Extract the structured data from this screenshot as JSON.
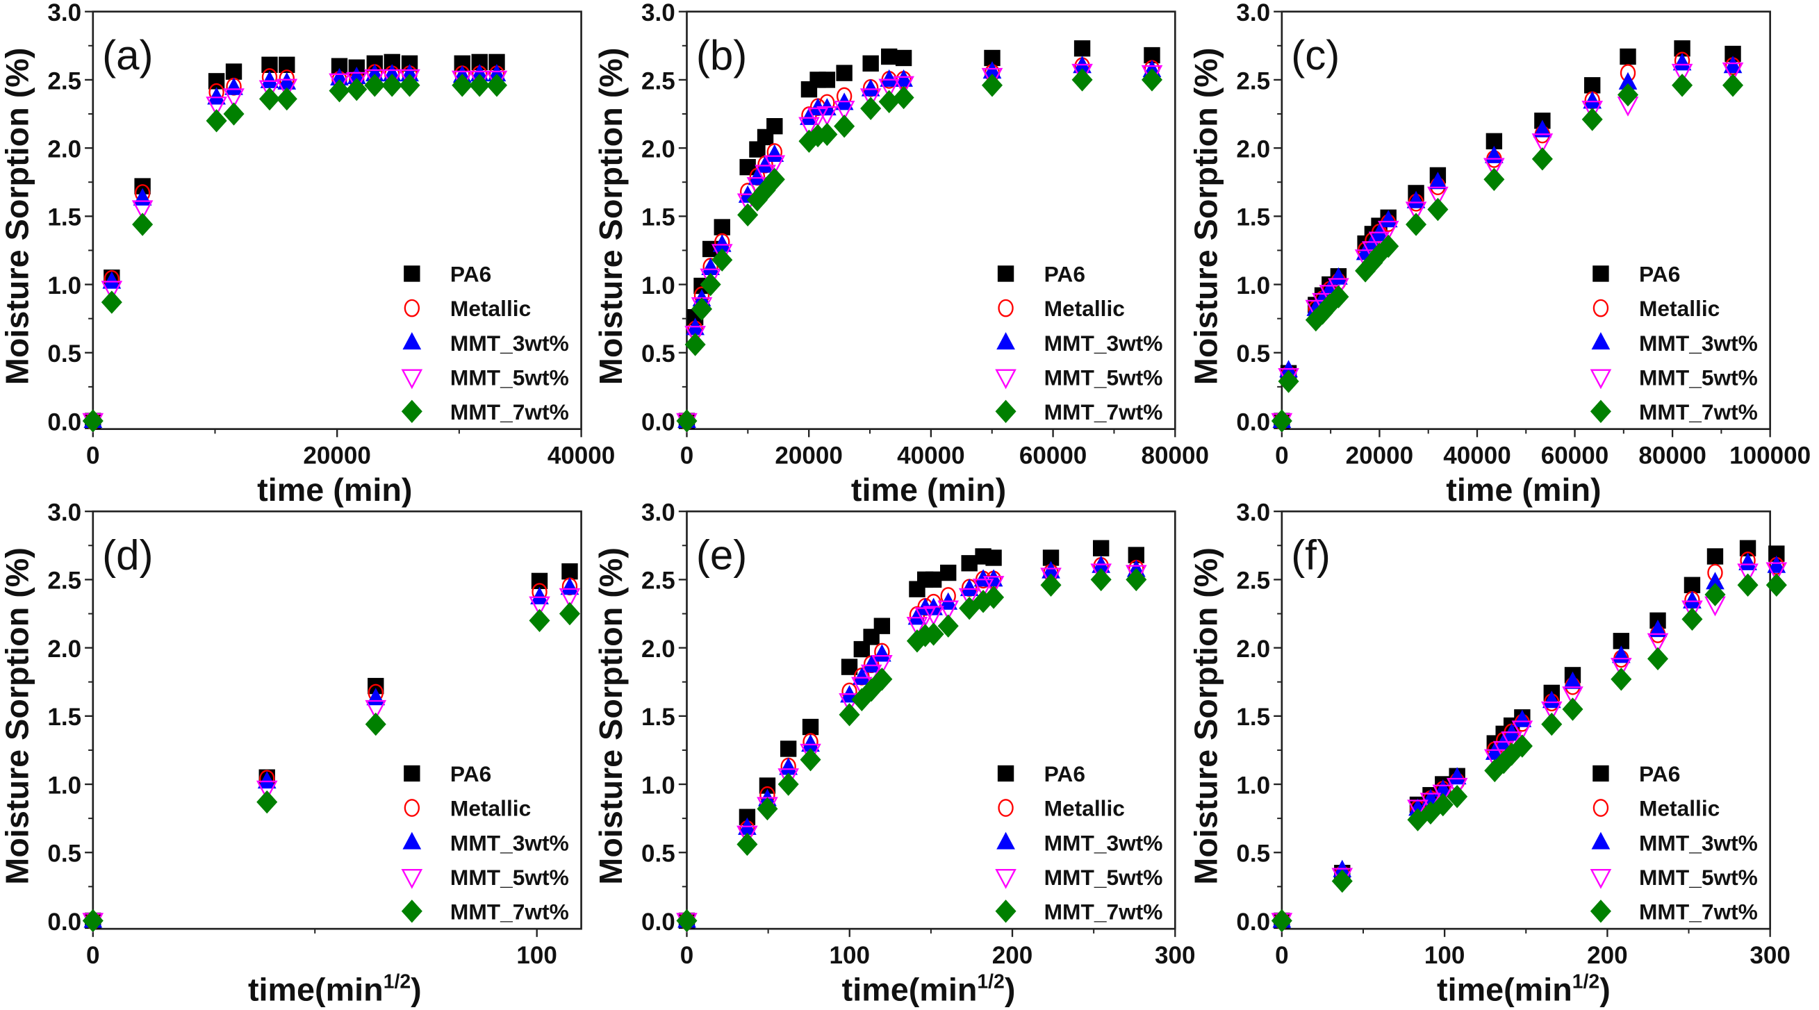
{
  "legend": {
    "position": "bottom-right",
    "entries": [
      {
        "name": "PA6",
        "color": "#000000",
        "marker": "filled-square"
      },
      {
        "name": "Metallic",
        "color": "#ff0000",
        "marker": "open-circle"
      },
      {
        "name": "MMT_3wt%",
        "color": "#0000ff",
        "marker": "filled-triangle-up"
      },
      {
        "name": "MMT_5wt%",
        "color": "#ff00ff",
        "marker": "open-triangle-down"
      },
      {
        "name": "MMT_7wt%",
        "color": "#008000",
        "marker": "filled-diamond"
      }
    ]
  },
  "chart_data": [
    {
      "panel": "(a)",
      "type": "scatter",
      "xlabel": "time (min)",
      "xlabel_sup": "",
      "xlabel_end": "",
      "ylabel": "Moisture Sorption (%)",
      "xlim": [
        0,
        40000
      ],
      "ylim": [
        0,
        3.0
      ],
      "grid": false,
      "xticks": [
        0,
        20000,
        40000
      ],
      "xtick_labels": [
        "0",
        "20000",
        "40000"
      ],
      "xminor": [
        10000,
        30000
      ],
      "yticks": [
        0,
        0.5,
        1.0,
        1.5,
        2.0,
        2.5,
        3.0
      ],
      "ytick_labels": [
        "0.0",
        "0.5",
        "1.0",
        "1.5",
        "2.0",
        "2.5",
        "3.0"
      ],
      "x": [
        0,
        1540,
        4060,
        10120,
        11540,
        14470,
        15880,
        20190,
        21600,
        23080,
        24500,
        25940,
        30250,
        31670,
        33080
      ],
      "series": [
        {
          "name": "PA6",
          "y": [
            0,
            1.05,
            1.72,
            2.49,
            2.56,
            2.61,
            2.61,
            2.6,
            2.59,
            2.62,
            2.63,
            2.62,
            2.62,
            2.63,
            2.63
          ]
        },
        {
          "name": "Metallic",
          "y": [
            0,
            1.04,
            1.67,
            2.41,
            2.45,
            2.52,
            2.51,
            2.5,
            2.5,
            2.55,
            2.54,
            2.54,
            2.54,
            2.54,
            2.54
          ]
        },
        {
          "name": "MMT_3wt%",
          "y": [
            0,
            1.02,
            1.63,
            2.37,
            2.44,
            2.49,
            2.48,
            2.51,
            2.52,
            2.54,
            2.54,
            2.54,
            2.53,
            2.54,
            2.54
          ]
        },
        {
          "name": "MMT_5wt%",
          "y": [
            0,
            0.97,
            1.56,
            2.32,
            2.38,
            2.44,
            2.45,
            2.49,
            2.5,
            2.52,
            2.52,
            2.52,
            2.51,
            2.51,
            2.51
          ]
        },
        {
          "name": "MMT_7wt%",
          "y": [
            0,
            0.87,
            1.44,
            2.2,
            2.25,
            2.36,
            2.36,
            2.42,
            2.43,
            2.46,
            2.46,
            2.46,
            2.46,
            2.46,
            2.46
          ]
        }
      ]
    },
    {
      "panel": "(b)",
      "type": "scatter",
      "xlabel": "time (min)",
      "xlabel_sup": "",
      "xlabel_end": "",
      "ylabel": "Moisture Sorption (%)",
      "xlim": [
        0,
        80000
      ],
      "ylim": [
        0,
        3.0
      ],
      "grid": false,
      "xticks": [
        0,
        20000,
        40000,
        60000,
        80000
      ],
      "xtick_labels": [
        "0",
        "20000",
        "40000",
        "60000",
        "80000"
      ],
      "xminor": [
        10000,
        30000,
        50000,
        70000
      ],
      "yticks": [
        0,
        0.5,
        1.0,
        1.5,
        2.0,
        2.5,
        3.0
      ],
      "ytick_labels": [
        "0.0",
        "0.5",
        "1.0",
        "1.5",
        "2.0",
        "2.5",
        "3.0"
      ],
      "x": [
        0,
        1380,
        2450,
        3890,
        5780,
        9980,
        11550,
        12870,
        14380,
        20030,
        21470,
        22980,
        25800,
        30130,
        33150,
        35530,
        50030,
        64780,
        76210
      ],
      "series": [
        {
          "name": "PA6",
          "y": [
            0,
            0.76,
            0.99,
            1.26,
            1.42,
            1.86,
            1.99,
            2.08,
            2.16,
            2.43,
            2.5,
            2.5,
            2.55,
            2.62,
            2.67,
            2.66,
            2.66,
            2.73,
            2.68
          ]
        },
        {
          "name": "Metallic",
          "y": [
            0,
            0.67,
            0.92,
            1.13,
            1.31,
            1.68,
            1.79,
            1.88,
            1.97,
            2.24,
            2.3,
            2.33,
            2.38,
            2.44,
            2.5,
            2.5,
            2.55,
            2.6,
            2.58
          ]
        },
        {
          "name": "MMT_3wt%",
          "y": [
            0,
            0.68,
            0.89,
            1.12,
            1.29,
            1.65,
            1.78,
            1.87,
            1.95,
            2.22,
            2.29,
            2.29,
            2.33,
            2.43,
            2.5,
            2.5,
            2.56,
            2.6,
            2.57
          ]
        },
        {
          "name": "MMT_5wt%",
          "y": [
            0,
            0.64,
            0.85,
            1.06,
            1.24,
            1.61,
            1.73,
            1.82,
            1.89,
            2.17,
            2.24,
            2.25,
            2.29,
            2.38,
            2.45,
            2.47,
            2.53,
            2.56,
            2.55
          ]
        },
        {
          "name": "MMT_7wt%",
          "y": [
            0,
            0.56,
            0.82,
            1.0,
            1.18,
            1.51,
            1.62,
            1.69,
            1.77,
            2.05,
            2.09,
            2.1,
            2.16,
            2.29,
            2.34,
            2.37,
            2.46,
            2.5,
            2.5
          ]
        }
      ]
    },
    {
      "panel": "(c)",
      "type": "scatter",
      "xlabel": "time (min)",
      "xlabel_sup": "",
      "xlabel_end": "",
      "ylabel": "Moisture Sorption (%)",
      "xlim": [
        0,
        100000
      ],
      "ylim": [
        0,
        3.0
      ],
      "grid": false,
      "xticks": [
        0,
        20000,
        40000,
        60000,
        80000,
        100000
      ],
      "xtick_labels": [
        "0",
        "20000",
        "40000",
        "60000",
        "80000",
        "100000"
      ],
      "xminor": [
        10000,
        30000,
        50000,
        70000,
        90000
      ],
      "yticks": [
        0,
        0.5,
        1.0,
        1.5,
        2.0,
        2.5,
        3.0
      ],
      "ytick_labels": [
        "0.0",
        "0.5",
        "1.0",
        "1.5",
        "2.0",
        "2.5",
        "3.0"
      ],
      "x": [
        0,
        1380,
        6970,
        8350,
        9810,
        11600,
        17110,
        18570,
        19950,
        21820,
        27490,
        31950,
        43470,
        53360,
        63580,
        70880,
        81990,
        92370
      ],
      "series": [
        {
          "name": "PA6",
          "y": [
            0,
            0.35,
            0.85,
            0.92,
            1.0,
            1.06,
            1.3,
            1.37,
            1.43,
            1.49,
            1.67,
            1.8,
            2.05,
            2.2,
            2.46,
            2.67,
            2.73,
            2.69
          ]
        },
        {
          "name": "Metallic",
          "y": [
            0,
            0.34,
            0.82,
            0.89,
            0.96,
            1.02,
            1.25,
            1.32,
            1.38,
            1.45,
            1.6,
            1.72,
            1.92,
            2.1,
            2.35,
            2.55,
            2.64,
            2.6
          ]
        },
        {
          "name": "MMT_3wt%",
          "y": [
            0,
            0.37,
            0.82,
            0.89,
            0.96,
            1.05,
            1.23,
            1.3,
            1.37,
            1.47,
            1.61,
            1.75,
            1.94,
            2.13,
            2.34,
            2.48,
            2.62,
            2.6
          ]
        },
        {
          "name": "MMT_5wt%",
          "y": [
            0,
            0.33,
            0.83,
            0.88,
            0.94,
            0.99,
            1.2,
            1.26,
            1.33,
            1.41,
            1.55,
            1.66,
            1.87,
            2.05,
            2.29,
            2.32,
            2.56,
            2.57
          ]
        },
        {
          "name": "MMT_7wt%",
          "y": [
            0,
            0.29,
            0.74,
            0.79,
            0.85,
            0.91,
            1.1,
            1.16,
            1.22,
            1.28,
            1.44,
            1.55,
            1.77,
            1.92,
            2.21,
            2.39,
            2.46,
            2.46
          ]
        }
      ]
    },
    {
      "panel": "(d)",
      "type": "scatter",
      "xlabel": "time(min",
      "xlabel_sup": "1/2",
      "xlabel_end": ")",
      "ylabel": "Moisture Sorption (%)",
      "xlim": [
        0,
        110
      ],
      "ylim": [
        0,
        3.0
      ],
      "grid": false,
      "xticks": [
        0,
        100
      ],
      "xtick_labels": [
        "0",
        "100"
      ],
      "xminor": [
        50
      ],
      "yticks": [
        0,
        0.5,
        1.0,
        1.5,
        2.0,
        2.5,
        3.0
      ],
      "ytick_labels": [
        "0.0",
        "0.5",
        "1.0",
        "1.5",
        "2.0",
        "2.5",
        "3.0"
      ],
      "x": [
        0,
        39.2,
        63.7,
        100.6,
        107.4
      ],
      "series": [
        {
          "name": "PA6",
          "y": [
            0,
            1.05,
            1.72,
            2.49,
            2.56
          ]
        },
        {
          "name": "Metallic",
          "y": [
            0,
            1.04,
            1.67,
            2.41,
            2.45
          ]
        },
        {
          "name": "MMT_3wt%",
          "y": [
            0,
            1.02,
            1.63,
            2.37,
            2.44
          ]
        },
        {
          "name": "MMT_5wt%",
          "y": [
            0,
            0.97,
            1.56,
            2.32,
            2.38
          ]
        },
        {
          "name": "MMT_7wt%",
          "y": [
            0,
            0.87,
            1.44,
            2.2,
            2.25
          ]
        }
      ]
    },
    {
      "panel": "(e)",
      "type": "scatter",
      "xlabel": "time(min",
      "xlabel_sup": "1/2",
      "xlabel_end": ")",
      "ylabel": "Moisture Sorption (%)",
      "xlim": [
        0,
        300
      ],
      "ylim": [
        0,
        3.0
      ],
      "grid": false,
      "xticks": [
        0,
        100,
        200,
        300
      ],
      "xtick_labels": [
        "0",
        "100",
        "200",
        "300"
      ],
      "xminor": [
        50,
        150,
        250
      ],
      "yticks": [
        0,
        0.5,
        1.0,
        1.5,
        2.0,
        2.5,
        3.0
      ],
      "ytick_labels": [
        "0.0",
        "0.5",
        "1.0",
        "1.5",
        "2.0",
        "2.5",
        "3.0"
      ],
      "x": [
        0,
        37.1,
        49.5,
        62.4,
        76.0,
        99.9,
        107.5,
        113.4,
        119.9,
        141.5,
        146.5,
        151.6,
        160.6,
        173.6,
        182.1,
        188.5,
        223.7,
        254.5,
        276.1
      ],
      "series": [
        {
          "name": "PA6",
          "y": [
            0,
            0.76,
            0.99,
            1.26,
            1.42,
            1.86,
            1.99,
            2.08,
            2.16,
            2.43,
            2.5,
            2.5,
            2.55,
            2.62,
            2.67,
            2.66,
            2.66,
            2.73,
            2.68
          ]
        },
        {
          "name": "Metallic",
          "y": [
            0,
            0.67,
            0.92,
            1.13,
            1.31,
            1.68,
            1.79,
            1.88,
            1.97,
            2.24,
            2.3,
            2.33,
            2.38,
            2.44,
            2.5,
            2.5,
            2.55,
            2.6,
            2.58
          ]
        },
        {
          "name": "MMT_3wt%",
          "y": [
            0,
            0.68,
            0.89,
            1.12,
            1.29,
            1.65,
            1.78,
            1.87,
            1.95,
            2.22,
            2.29,
            2.29,
            2.33,
            2.43,
            2.5,
            2.5,
            2.56,
            2.6,
            2.57
          ]
        },
        {
          "name": "MMT_5wt%",
          "y": [
            0,
            0.64,
            0.85,
            1.06,
            1.24,
            1.61,
            1.73,
            1.82,
            1.89,
            2.17,
            2.24,
            2.25,
            2.29,
            2.38,
            2.45,
            2.47,
            2.53,
            2.56,
            2.55
          ]
        },
        {
          "name": "MMT_7wt%",
          "y": [
            0,
            0.56,
            0.82,
            1.0,
            1.18,
            1.51,
            1.62,
            1.69,
            1.77,
            2.05,
            2.09,
            2.1,
            2.16,
            2.29,
            2.34,
            2.37,
            2.46,
            2.5,
            2.5
          ]
        }
      ]
    },
    {
      "panel": "(f)",
      "type": "scatter",
      "xlabel": "time(min",
      "xlabel_sup": "1/2",
      "xlabel_end": ")",
      "ylabel": "Moisture Sorption (%)",
      "xlim": [
        0,
        300
      ],
      "ylim": [
        0,
        3.0
      ],
      "grid": false,
      "xticks": [
        0,
        100,
        200,
        300
      ],
      "xtick_labels": [
        "0",
        "100",
        "200",
        "300"
      ],
      "xminor": [
        50,
        150,
        250
      ],
      "yticks": [
        0,
        0.5,
        1.0,
        1.5,
        2.0,
        2.5,
        3.0
      ],
      "ytick_labels": [
        "0.0",
        "0.5",
        "1.0",
        "1.5",
        "2.0",
        "2.5",
        "3.0"
      ],
      "x": [
        0,
        37.1,
        83.5,
        91.4,
        99.0,
        107.7,
        130.8,
        136.3,
        141.2,
        147.7,
        165.8,
        178.7,
        208.5,
        231.0,
        252.1,
        266.2,
        286.3,
        303.9
      ],
      "series": [
        {
          "name": "PA6",
          "y": [
            0,
            0.35,
            0.85,
            0.92,
            1.0,
            1.06,
            1.3,
            1.37,
            1.43,
            1.49,
            1.67,
            1.8,
            2.05,
            2.2,
            2.46,
            2.67,
            2.73,
            2.69
          ]
        },
        {
          "name": "Metallic",
          "y": [
            0,
            0.34,
            0.82,
            0.89,
            0.96,
            1.02,
            1.25,
            1.32,
            1.38,
            1.45,
            1.6,
            1.72,
            1.92,
            2.1,
            2.35,
            2.55,
            2.64,
            2.6
          ]
        },
        {
          "name": "MMT_3wt%",
          "y": [
            0,
            0.37,
            0.82,
            0.89,
            0.96,
            1.05,
            1.23,
            1.3,
            1.37,
            1.47,
            1.61,
            1.75,
            1.94,
            2.13,
            2.34,
            2.48,
            2.62,
            2.6
          ]
        },
        {
          "name": "MMT_5wt%",
          "y": [
            0,
            0.33,
            0.83,
            0.88,
            0.94,
            0.99,
            1.2,
            1.26,
            1.33,
            1.41,
            1.55,
            1.66,
            1.87,
            2.05,
            2.29,
            2.32,
            2.56,
            2.57
          ]
        },
        {
          "name": "MMT_7wt%",
          "y": [
            0,
            0.29,
            0.74,
            0.79,
            0.85,
            0.91,
            1.1,
            1.16,
            1.22,
            1.28,
            1.44,
            1.55,
            1.77,
            1.92,
            2.21,
            2.39,
            2.46,
            2.46
          ]
        }
      ]
    }
  ]
}
